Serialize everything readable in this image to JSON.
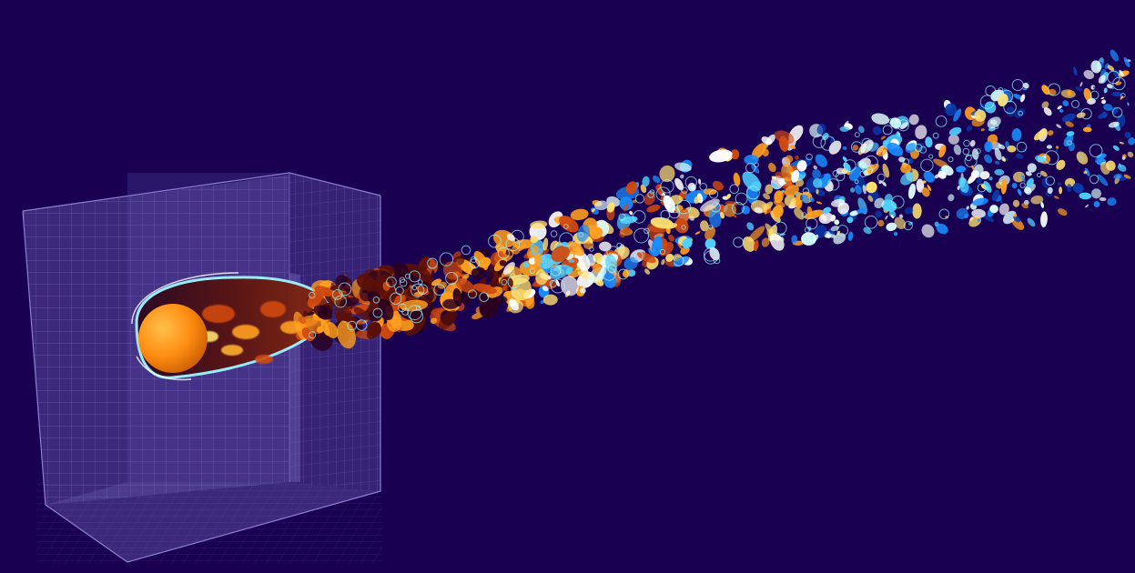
{
  "scene": {
    "background": "#1a0050",
    "mesh_box": {
      "face_color": "#5a4a9c",
      "grid_color": "#7e6fc0",
      "edge_color": "#8c7fd0"
    },
    "sphere": {
      "light": "#ffb53a",
      "mid": "#ff8c12",
      "dark": "#c45a00"
    },
    "wake": {
      "colormap": [
        "#ffffff",
        "#ffe070",
        "#ffa020",
        "#d04a10",
        "#5a1008",
        "#2a0020"
      ],
      "outer_colormap": [
        "#e0ffff",
        "#50d0ff",
        "#1a8cff",
        "#0a3aaa"
      ],
      "outline": "#9ff5ff"
    }
  }
}
